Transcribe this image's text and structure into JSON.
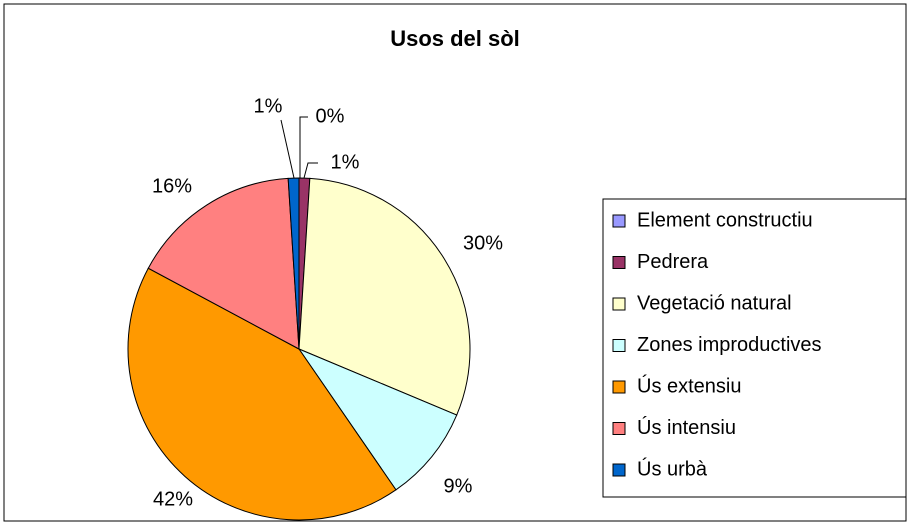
{
  "chart_data": {
    "type": "pie",
    "title": "Usos del sòl",
    "categories": [
      "Element constructiu",
      "Pedrera",
      "Vegetació natural",
      "Zones improductives",
      "Ús extensiu",
      "Ús intensiu",
      "Ús urbà"
    ],
    "values": [
      0,
      1,
      30,
      9,
      42,
      16,
      1
    ],
    "value_labels": [
      "0%",
      "1%",
      "30%",
      "9%",
      "42%",
      "16%",
      "1%"
    ],
    "colors": [
      "#9999ff",
      "#993366",
      "#ffffcc",
      "#ccffff",
      "#ff9900",
      "#ff8080",
      "#0066cc"
    ],
    "legend": "right"
  }
}
